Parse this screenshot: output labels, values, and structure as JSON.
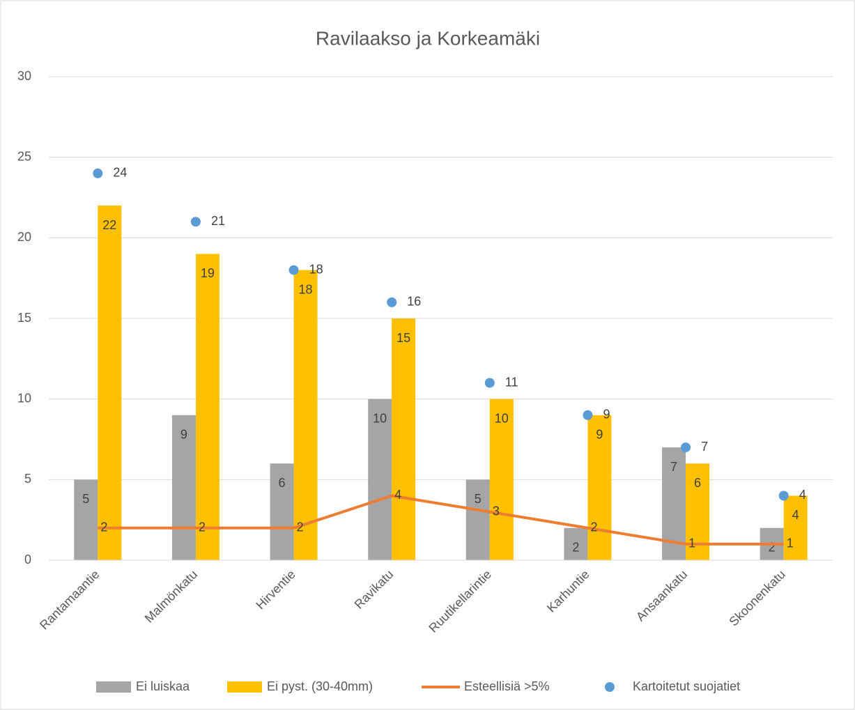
{
  "chart_data": {
    "type": "bar",
    "title": "Ravilaakso ja Korkeamäki",
    "categories": [
      "Rantamaantie",
      "Malmönkatu",
      "Hirventie",
      "Ravikatu",
      "Ruutikellarintie",
      "Karhuntie",
      "Ansaankatu",
      "Skoonenkatu"
    ],
    "series": [
      {
        "name": "Ei luiskaa",
        "type": "bar",
        "color": "#a5a5a5",
        "values": [
          5,
          9,
          6,
          10,
          5,
          2,
          7,
          2
        ]
      },
      {
        "name": "Ei pyst. (30-40mm)",
        "type": "bar",
        "color": "#ffc000",
        "values": [
          22,
          19,
          18,
          15,
          10,
          9,
          6,
          4
        ]
      },
      {
        "name": "Esteellisiä >5%",
        "type": "line",
        "color": "#ed7d31",
        "values": [
          2,
          2,
          2,
          4,
          3,
          2,
          1,
          1
        ]
      },
      {
        "name": "Kartoitetut suojatiet",
        "type": "scatter",
        "color": "#5b9bd5",
        "values": [
          24,
          21,
          18,
          16,
          11,
          9,
          7,
          4
        ]
      }
    ],
    "ylim": [
      0,
      30
    ],
    "yticks": [
      0,
      5,
      10,
      15,
      20,
      25,
      30
    ],
    "grid": true,
    "legend": "bottom"
  }
}
